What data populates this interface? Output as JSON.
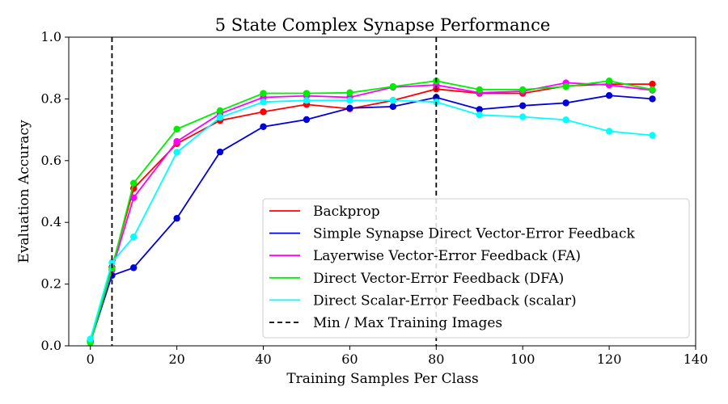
{
  "chart_data": {
    "type": "line",
    "title": "5 State Complex Synapse Performance",
    "xlabel": "Training Samples Per Class",
    "ylabel": "Evaluation Accuracy",
    "xlim": [
      -5,
      140
    ],
    "ylim": [
      0.0,
      1.0
    ],
    "xticks": [
      0,
      20,
      40,
      60,
      80,
      100,
      120,
      140
    ],
    "yticks": [
      0.0,
      0.2,
      0.4,
      0.6,
      0.8,
      1.0
    ],
    "xtick_labels": [
      "0",
      "20",
      "40",
      "60",
      "80",
      "100",
      "120",
      "140"
    ],
    "ytick_labels": [
      "0.0",
      "0.2",
      "0.4",
      "0.6",
      "0.8",
      "1.0"
    ],
    "grid": false,
    "legend_position": "lower-right",
    "x": [
      0,
      5,
      10,
      20,
      30,
      40,
      50,
      60,
      70,
      80,
      90,
      100,
      110,
      120,
      130
    ],
    "series": [
      {
        "name": "Backprop",
        "color": "#ff0000",
        "values": [
          0.015,
          0.255,
          0.51,
          0.655,
          0.73,
          0.758,
          0.782,
          0.768,
          0.795,
          0.832,
          0.818,
          0.818,
          0.842,
          0.848,
          0.848
        ]
      },
      {
        "name": "Simple Synapse Direct Vector-Error Feedback",
        "color": "#0000dd",
        "values": [
          0.012,
          0.228,
          0.253,
          0.413,
          0.628,
          0.71,
          0.733,
          0.77,
          0.775,
          0.805,
          0.766,
          0.778,
          0.787,
          0.811,
          0.8
        ]
      },
      {
        "name": "Layerwise Vector-Error Feedback (FA)",
        "color": "#ff00ff",
        "values": [
          0.018,
          0.245,
          0.48,
          0.662,
          0.752,
          0.805,
          0.81,
          0.805,
          0.838,
          0.845,
          0.82,
          0.825,
          0.852,
          0.845,
          0.828
        ]
      },
      {
        "name": "Direct Vector-Error Feedback (DFA)",
        "color": "#00ee00",
        "values": [
          0.01,
          0.25,
          0.527,
          0.702,
          0.762,
          0.818,
          0.818,
          0.82,
          0.84,
          0.858,
          0.83,
          0.83,
          0.84,
          0.858,
          0.83
        ]
      },
      {
        "name": "Direct Scalar-Error Feedback (scalar)",
        "color": "#00ffff",
        "values": [
          0.022,
          0.27,
          0.353,
          0.627,
          0.74,
          0.79,
          0.795,
          0.795,
          0.795,
          0.79,
          0.748,
          0.742,
          0.732,
          0.695,
          0.682
        ]
      }
    ],
    "vlines": {
      "name": "Min / Max Training Images",
      "x": [
        5,
        80
      ],
      "color": "#000000",
      "style": "dashed"
    }
  }
}
